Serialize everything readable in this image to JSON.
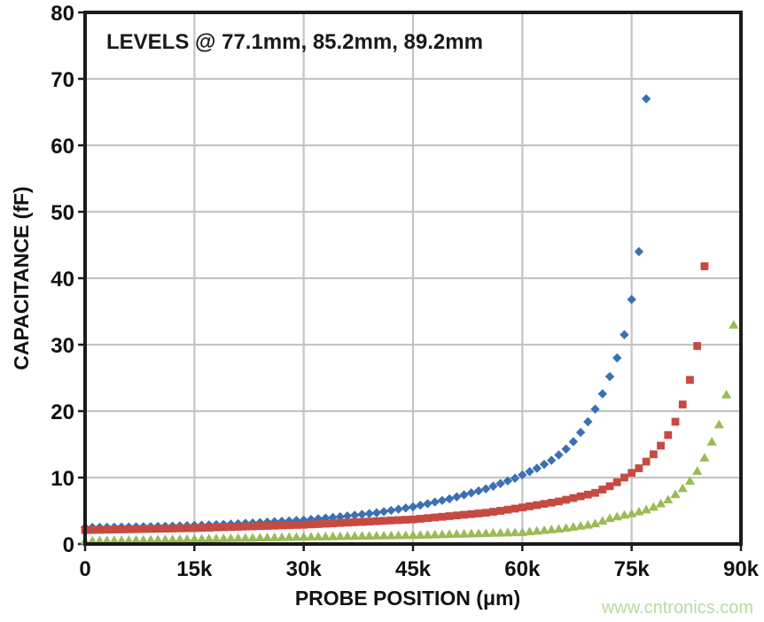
{
  "chart_data": {
    "type": "scatter",
    "title": "LEVELS @ 77.1mm, 85.2mm, 89.2mm",
    "xlabel": "PROBE POSITION (μm)",
    "ylabel": "CAPACITANCE (fF)",
    "xlim": [
      0,
      90000
    ],
    "ylim": [
      0,
      80
    ],
    "grid": true,
    "legend": "none",
    "background_color": "#ffffff",
    "gridline_color": "#c4c4c4",
    "frame_color": "#1b1b1b",
    "text_color": "#121212",
    "xticks": {
      "values": [
        0,
        15000,
        30000,
        45000,
        60000,
        75000,
        90000
      ],
      "labels": [
        "0",
        "15k",
        "30k",
        "45k",
        "60k",
        "75k",
        "90k"
      ]
    },
    "yticks": {
      "values": [
        0,
        10,
        20,
        30,
        40,
        50,
        60,
        70,
        80
      ],
      "labels": [
        "0",
        "10",
        "20",
        "30",
        "40",
        "50",
        "60",
        "70",
        "80"
      ]
    },
    "series": [
      {
        "name": "LEVEL 77.1mm",
        "marker": "diamond",
        "color": "#3C70B4",
        "level_um": 77100,
        "x_start_um": 0,
        "x_step_um": 1000,
        "values": [
          2.5,
          2.51,
          2.52,
          2.53,
          2.54,
          2.55,
          2.57,
          2.59,
          2.61,
          2.63,
          2.65,
          2.68,
          2.71,
          2.74,
          2.77,
          2.8,
          2.84,
          2.88,
          2.92,
          2.96,
          3.0,
          3.06,
          3.12,
          3.18,
          3.24,
          3.3,
          3.36,
          3.42,
          3.48,
          3.54,
          3.6,
          3.7,
          3.8,
          3.9,
          4.0,
          4.1,
          4.22,
          4.34,
          4.46,
          4.58,
          4.7,
          4.88,
          5.06,
          5.24,
          5.42,
          5.6,
          5.84,
          6.08,
          6.32,
          6.56,
          6.8,
          7.1,
          7.4,
          7.7,
          8.0,
          8.3,
          8.7,
          9.1,
          9.5,
          9.9,
          10.4,
          10.9,
          11.4,
          12.0,
          12.6,
          13.4,
          14.3,
          15.4,
          16.8,
          18.4,
          20.3,
          22.6,
          25.2,
          28.0,
          31.5,
          36.8,
          44.0,
          67.0
        ]
      },
      {
        "name": "LEVEL 85.2mm",
        "marker": "square",
        "color": "#C74A41",
        "level_um": 85200,
        "x_start_um": 0,
        "x_step_um": 1000,
        "values": [
          2.1,
          2.12,
          2.14,
          2.16,
          2.18,
          2.2,
          2.22,
          2.24,
          2.26,
          2.28,
          2.3,
          2.32,
          2.34,
          2.36,
          2.38,
          2.4,
          2.43,
          2.46,
          2.5,
          2.53,
          2.56,
          2.6,
          2.63,
          2.66,
          2.7,
          2.73,
          2.76,
          2.8,
          2.83,
          2.87,
          2.9,
          2.95,
          3.0,
          3.06,
          3.11,
          3.17,
          3.22,
          3.28,
          3.33,
          3.38,
          3.44,
          3.49,
          3.55,
          3.6,
          3.65,
          3.7,
          3.8,
          3.9,
          4.0,
          4.1,
          4.2,
          4.3,
          4.4,
          4.5,
          4.6,
          4.7,
          4.85,
          5.0,
          5.17,
          5.33,
          5.5,
          5.68,
          5.86,
          6.04,
          6.22,
          6.4,
          6.66,
          6.92,
          7.18,
          7.44,
          7.7,
          8.2,
          8.7,
          9.3,
          10.0,
          10.7,
          11.4,
          12.4,
          13.5,
          14.8,
          16.4,
          18.4,
          21.0,
          24.7,
          29.8,
          41.8
        ]
      },
      {
        "name": "LEVEL 89.2mm",
        "marker": "triangle",
        "color": "#9BBB55",
        "level_um": 89200,
        "x_start_um": 0,
        "x_step_um": 1000,
        "values": [
          0.5,
          0.52,
          0.54,
          0.56,
          0.58,
          0.6,
          0.62,
          0.64,
          0.66,
          0.68,
          0.7,
          0.72,
          0.74,
          0.76,
          0.78,
          0.8,
          0.82,
          0.84,
          0.86,
          0.88,
          0.9,
          0.92,
          0.94,
          0.96,
          0.98,
          1.0,
          1.02,
          1.04,
          1.06,
          1.08,
          1.1,
          1.12,
          1.13,
          1.15,
          1.17,
          1.18,
          1.2,
          1.22,
          1.23,
          1.25,
          1.27,
          1.28,
          1.3,
          1.32,
          1.33,
          1.35,
          1.38,
          1.41,
          1.44,
          1.47,
          1.5,
          1.53,
          1.56,
          1.59,
          1.62,
          1.65,
          1.68,
          1.71,
          1.74,
          1.77,
          1.8,
          1.9,
          2.0,
          2.1,
          2.2,
          2.3,
          2.45,
          2.6,
          2.75,
          2.9,
          3.1,
          3.5,
          3.9,
          4.15,
          4.4,
          4.6,
          4.9,
          5.2,
          5.6,
          6.1,
          6.7,
          7.5,
          8.4,
          9.5,
          11.0,
          13.0,
          15.4,
          18.0,
          22.5,
          33.0
        ]
      }
    ]
  },
  "watermark": {
    "text": "www.cntronics.com",
    "color": "#BBD99F"
  }
}
